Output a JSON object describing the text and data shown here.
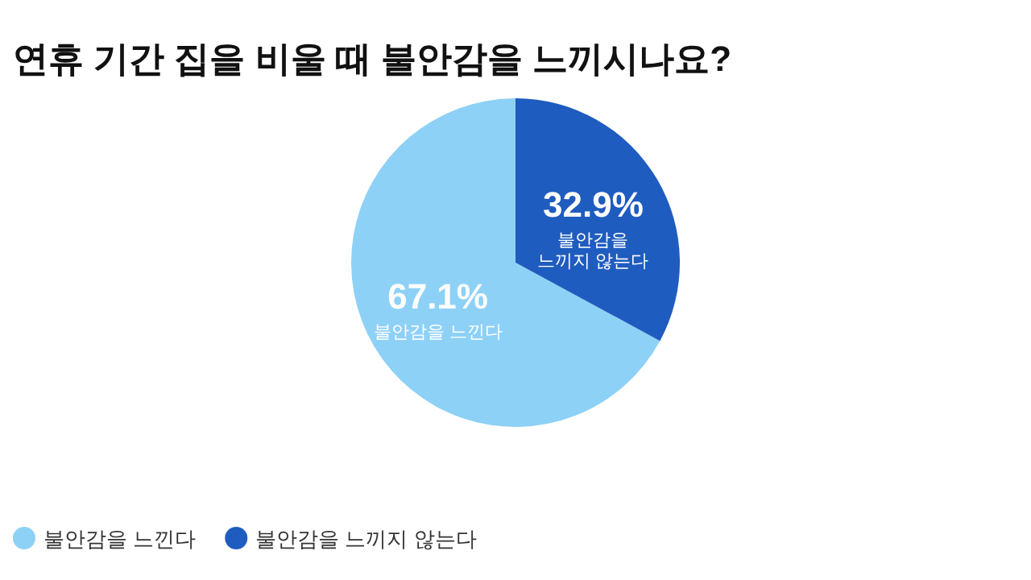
{
  "chart_data": {
    "type": "pie",
    "title": "연휴 기간 집을 비울 때 불안감을 느끼시나요?",
    "categories": [
      "불안감을 느낀다",
      "불안감을 느끼지 않는다"
    ],
    "values": [
      67.1,
      32.9
    ],
    "colors": [
      "#8ed1f7",
      "#1f5cbf"
    ],
    "value_labels": [
      "67.1%",
      "32.9%"
    ],
    "legend": "bottom left"
  }
}
